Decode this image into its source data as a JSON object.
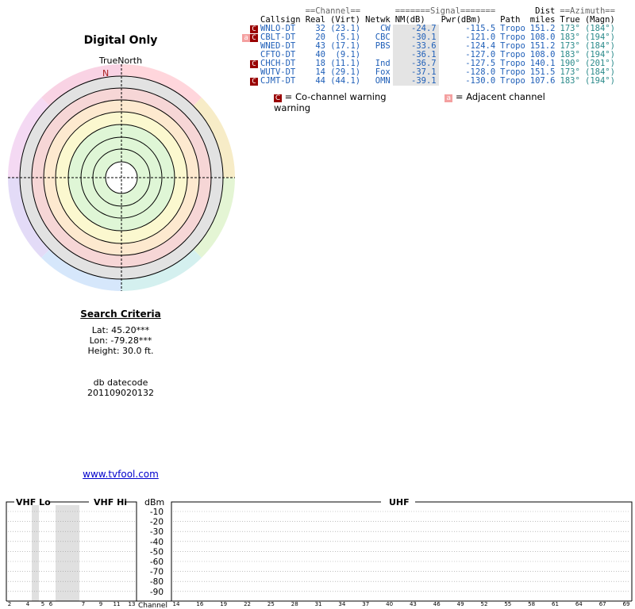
{
  "polar": {
    "title": "Digital Only",
    "true_north_label": "TrueNorth",
    "north_marker": "N",
    "north_color": "#aa2222"
  },
  "criteria": {
    "header": "Search Criteria",
    "lat": "Lat: 45.20***",
    "lon": "Lon: -79.28***",
    "height": "Height: 30.0 ft."
  },
  "db": {
    "label": "db datecode",
    "value": "201109020132"
  },
  "site_link": "www.tvfool.com",
  "table": {
    "group_headers": {
      "channel": "==Channel==",
      "signal": "=======Signal=======",
      "dist": "Dist",
      "azimuth": "==Azimuth=="
    },
    "columns": [
      "Callsign",
      "Real",
      "(Virt)",
      "Netwk",
      "NM(dB)",
      "Pwr(dBm)",
      "Path",
      "miles",
      "True",
      "(Magn)"
    ],
    "rows": [
      {
        "warn": "co",
        "callsign": "WNLO-DT",
        "real": "32",
        "virt": "(23.1)",
        "netwk": "CW",
        "nm": "-24.7",
        "pwr": "-115.5",
        "path": "Tropo",
        "miles": "151.2",
        "true": "173°",
        "magn": "(184°)"
      },
      {
        "warn": "adj+co",
        "callsign": "CBLT-DT",
        "real": "20",
        "virt": "(5.1)",
        "netwk": "CBC",
        "nm": "-30.1",
        "pwr": "-121.0",
        "path": "Tropo",
        "miles": "108.0",
        "true": "183°",
        "magn": "(194°)"
      },
      {
        "warn": "",
        "callsign": "WNED-DT",
        "real": "43",
        "virt": "(17.1)",
        "netwk": "PBS",
        "nm": "-33.6",
        "pwr": "-124.4",
        "path": "Tropo",
        "miles": "151.2",
        "true": "173°",
        "magn": "(184°)"
      },
      {
        "warn": "",
        "callsign": "CFTO-DT",
        "real": "40",
        "virt": "(9.1)",
        "netwk": "",
        "nm": "-36.1",
        "pwr": "-127.0",
        "path": "Tropo",
        "miles": "108.0",
        "true": "183°",
        "magn": "(194°)"
      },
      {
        "warn": "co",
        "callsign": "CHCH-DT",
        "real": "18",
        "virt": "(11.1)",
        "netwk": "Ind",
        "nm": "-36.7",
        "pwr": "-127.5",
        "path": "Tropo",
        "miles": "140.1",
        "true": "190°",
        "magn": "(201°)"
      },
      {
        "warn": "",
        "callsign": "WUTV-DT",
        "real": "14",
        "virt": "(29.1)",
        "netwk": "Fox",
        "nm": "-37.1",
        "pwr": "-128.0",
        "path": "Tropo",
        "miles": "151.5",
        "true": "173°",
        "magn": "(184°)"
      },
      {
        "warn": "co",
        "callsign": "CJMT-DT",
        "real": "44",
        "virt": "(44.1)",
        "netwk": "OMN",
        "nm": "-39.1",
        "pwr": "-130.0",
        "path": "Tropo",
        "miles": "107.6",
        "true": "183°",
        "magn": "(194°)"
      }
    ],
    "text_color": "#1f5fb8",
    "azimuth_color": "#2a8a8a"
  },
  "legend": {
    "co_glyph": "C",
    "co_text": "= Co-channel warning",
    "adj_glyph": "a",
    "adj_text": "= Adjacent channel warning",
    "co_color": "#990000",
    "adj_color": "#f4a0a0"
  },
  "spectrum": {
    "vhf_lo_label": "VHF Lo",
    "vhf_hi_label": "VHF Hi",
    "uhf_label": "UHF",
    "dbm_label": "dBm",
    "dbm_ticks": [
      "-10",
      "-20",
      "-30",
      "-40",
      "-50",
      "-60",
      "-70",
      "-80",
      "-90"
    ],
    "channel_label": "Channel",
    "vhf_channels": [
      "2",
      "4",
      "5",
      "6",
      "7",
      "9",
      "11",
      "13"
    ],
    "uhf_channels": [
      "14",
      "16",
      "19",
      "22",
      "25",
      "28",
      "31",
      "34",
      "37",
      "40",
      "43",
      "46",
      "49",
      "52",
      "55",
      "58",
      "61",
      "64",
      "67",
      "69"
    ]
  }
}
